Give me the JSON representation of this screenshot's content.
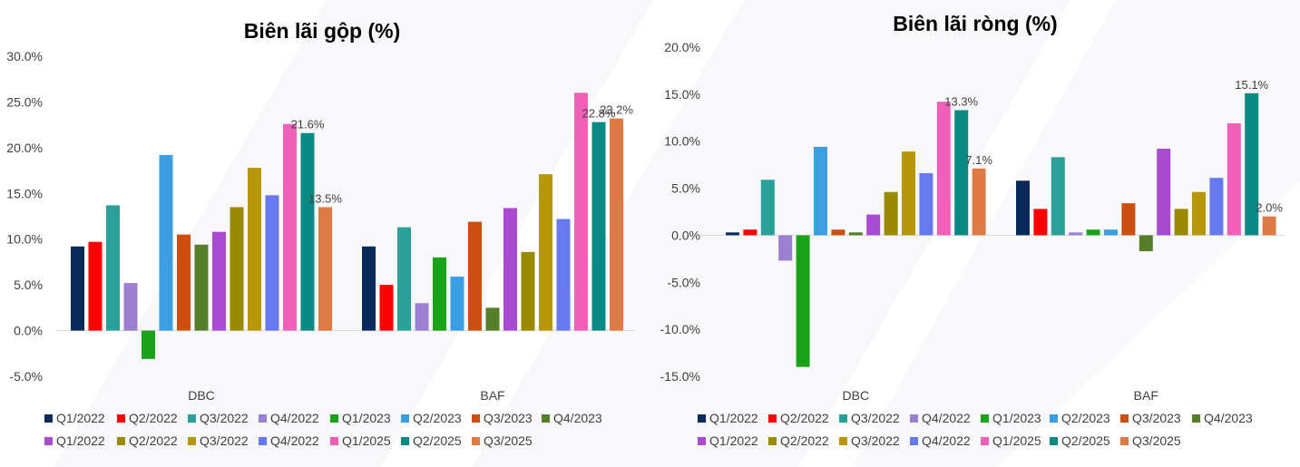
{
  "chart_data": [
    {
      "type": "bar",
      "title": "Biên lãi gộp (%)",
      "categories": [
        "DBC",
        "BAF"
      ],
      "ylim": [
        -5,
        30
      ],
      "yticks": [
        "30.0%",
        "25.0%",
        "20.0%",
        "15.0%",
        "10.0%",
        "5.0%",
        "0.0%",
        "-5.0%"
      ],
      "ytick_values": [
        30,
        25,
        20,
        15,
        10,
        5,
        0,
        -5
      ],
      "series": [
        {
          "name": "Q1/2022",
          "color": "#0b2a5c",
          "values": [
            9.2,
            9.2
          ]
        },
        {
          "name": "Q2/2022",
          "color": "#ff0000",
          "values": [
            9.7,
            5.0
          ]
        },
        {
          "name": "Q3/2022",
          "color": "#2aa198",
          "values": [
            13.7,
            11.3
          ]
        },
        {
          "name": "Q4/2022",
          "color": "#9b7fd0",
          "values": [
            5.2,
            3.0
          ]
        },
        {
          "name": "Q1/2023",
          "color": "#1aa31a",
          "values": [
            -3.1,
            8.0
          ]
        },
        {
          "name": "Q2/2023",
          "color": "#3a9ee0",
          "values": [
            19.2,
            5.9
          ]
        },
        {
          "name": "Q3/2023",
          "color": "#cc4f12",
          "values": [
            10.5,
            11.9
          ]
        },
        {
          "name": "Q4/2023",
          "color": "#567d2a",
          "values": [
            9.4,
            2.5
          ]
        },
        {
          "name": "Q1/2022",
          "color": "#a94bd0",
          "values": [
            10.8,
            13.4
          ]
        },
        {
          "name": "Q2/2022",
          "color": "#9a8a00",
          "values": [
            13.5,
            8.6
          ]
        },
        {
          "name": "Q3/2022",
          "color": "#b8960a",
          "values": [
            17.8,
            17.1
          ]
        },
        {
          "name": "Q4/2022",
          "color": "#6779ee",
          "values": [
            14.8,
            12.2
          ]
        },
        {
          "name": "Q1/2025",
          "color": "#f060b8",
          "values": [
            22.6,
            26.0
          ]
        },
        {
          "name": "Q2/2025",
          "color": "#0b8a84",
          "values": [
            21.6,
            22.8
          ]
        },
        {
          "name": "Q3/2025",
          "color": "#e07a45",
          "values": [
            13.5,
            23.2
          ]
        }
      ],
      "data_labels": [
        {
          "series": 13,
          "category": 0,
          "text": "21.6%"
        },
        {
          "series": 14,
          "category": 0,
          "text": "13.5%"
        },
        {
          "series": 13,
          "category": 1,
          "text": "22.8%"
        },
        {
          "series": 14,
          "category": 1,
          "text": "23.2%"
        }
      ]
    },
    {
      "type": "bar",
      "title": "Biên lãi ròng (%)",
      "categories": [
        "DBC",
        "BAF"
      ],
      "ylim": [
        -15,
        20
      ],
      "yticks": [
        "20.0%",
        "15.0%",
        "10.0%",
        "5.0%",
        "0.0%",
        "-5.0%",
        "-10.0%",
        "-15.0%"
      ],
      "ytick_values": [
        20,
        15,
        10,
        5,
        0,
        -5,
        -10,
        -15
      ],
      "series": [
        {
          "name": "Q1/2022",
          "color": "#0b2a5c",
          "values": [
            0.3,
            5.8
          ]
        },
        {
          "name": "Q2/2022",
          "color": "#ff0000",
          "values": [
            0.6,
            2.8
          ]
        },
        {
          "name": "Q3/2022",
          "color": "#2aa198",
          "values": [
            5.9,
            8.3
          ]
        },
        {
          "name": "Q4/2022",
          "color": "#9b7fd0",
          "values": [
            -2.7,
            0.3
          ]
        },
        {
          "name": "Q1/2023",
          "color": "#1aa31a",
          "values": [
            -14.0,
            0.6
          ]
        },
        {
          "name": "Q2/2023",
          "color": "#3a9ee0",
          "values": [
            9.4,
            0.6
          ]
        },
        {
          "name": "Q3/2023",
          "color": "#cc4f12",
          "values": [
            0.6,
            3.4
          ]
        },
        {
          "name": "Q4/2023",
          "color": "#567d2a",
          "values": [
            0.3,
            -1.7
          ]
        },
        {
          "name": "Q1/2022",
          "color": "#a94bd0",
          "values": [
            2.2,
            9.2
          ]
        },
        {
          "name": "Q2/2022",
          "color": "#9a8a00",
          "values": [
            4.6,
            2.8
          ]
        },
        {
          "name": "Q3/2022",
          "color": "#b8960a",
          "values": [
            8.9,
            4.6
          ]
        },
        {
          "name": "Q4/2022",
          "color": "#6779ee",
          "values": [
            6.6,
            6.1
          ]
        },
        {
          "name": "Q1/2025",
          "color": "#f060b8",
          "values": [
            14.2,
            11.9
          ]
        },
        {
          "name": "Q2/2025",
          "color": "#0b8a84",
          "values": [
            13.3,
            15.1
          ]
        },
        {
          "name": "Q3/2025",
          "color": "#e07a45",
          "values": [
            7.1,
            2.0
          ]
        }
      ],
      "data_labels": [
        {
          "series": 13,
          "category": 0,
          "text": "13.3%"
        },
        {
          "series": 14,
          "category": 0,
          "text": "7.1%"
        },
        {
          "series": 13,
          "category": 1,
          "text": "15.1%"
        },
        {
          "series": 14,
          "category": 1,
          "text": "2.0%"
        }
      ]
    }
  ]
}
